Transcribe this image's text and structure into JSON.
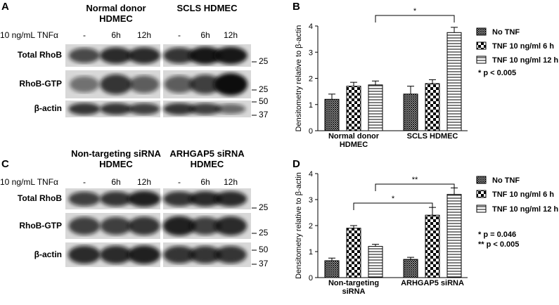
{
  "panels": [
    "A",
    "B",
    "C",
    "D"
  ],
  "blots": [
    {
      "groups": [
        "Normal donor HDMEC",
        "SCLS HDMEC"
      ],
      "treatment": "10 ng/mL TNFα",
      "lanes": [
        "-",
        "6h",
        "12h",
        "-",
        "6h",
        "12h"
      ],
      "rows": [
        "Total RhoB",
        "RhoB-GTP",
        "β-actin"
      ],
      "markers": [
        "25",
        "25",
        "50",
        "37"
      ]
    },
    {
      "groups": [
        "Non-targeting siRNA HDMEC",
        "ARHGAP5 siRNA HDMEC"
      ],
      "treatment": "10 ng/mL TNFα",
      "lanes": [
        "-",
        "6h",
        "12h",
        "-",
        "6h",
        "12h"
      ],
      "rows": [
        "Total RhoB",
        "RhoB-GTP",
        "β-actin"
      ],
      "markers": [
        "25",
        "25",
        "50",
        "37"
      ]
    }
  ],
  "chart_data": [
    {
      "type": "bar",
      "ylabel": "Densitometry relative to β-actin",
      "categories": [
        "Normal donor HDMEC",
        "SCLS HDMEC"
      ],
      "series": [
        {
          "name": "No TNF",
          "color": "#000000",
          "values": [
            1.2,
            1.4
          ],
          "errors": [
            0.2,
            0.3
          ]
        },
        {
          "name": "TNF 10 ng/ml 6 h",
          "color": "#000000",
          "values": [
            1.7,
            1.8
          ],
          "errors": [
            0.15,
            0.15
          ]
        },
        {
          "name": "TNF 10 ng/ml 12 h",
          "color": "#000000",
          "values": [
            1.75,
            3.75
          ],
          "errors": [
            0.15,
            0.2
          ]
        }
      ],
      "ylim": [
        0,
        4
      ],
      "yticks": [
        0,
        1,
        2,
        3,
        4
      ],
      "legend": "right",
      "annotations": [
        "*"
      ],
      "notes": [
        "* p < 0.005"
      ]
    },
    {
      "type": "bar",
      "ylabel": "Densitometry relative to β-actin",
      "categories": [
        "Non-targeting siRNA",
        "ARHGAP5 siRNA"
      ],
      "series": [
        {
          "name": "No TNF",
          "color": "#000000",
          "values": [
            0.65,
            0.7
          ],
          "errors": [
            0.1,
            0.08
          ]
        },
        {
          "name": "TNF 10 ng/ml 6 h",
          "color": "#000000",
          "values": [
            1.9,
            2.4
          ],
          "errors": [
            0.1,
            0.3
          ]
        },
        {
          "name": "TNF 10 ng/ml 12 h",
          "color": "#000000",
          "values": [
            1.2,
            3.2
          ],
          "errors": [
            0.08,
            0.25
          ]
        }
      ],
      "ylim": [
        0,
        4
      ],
      "yticks": [
        0,
        1,
        2,
        3,
        4
      ],
      "legend": "right",
      "annotations": [
        "*",
        "**"
      ],
      "notes": [
        "* p = 0.046",
        "** p < 0.005"
      ]
    }
  ]
}
